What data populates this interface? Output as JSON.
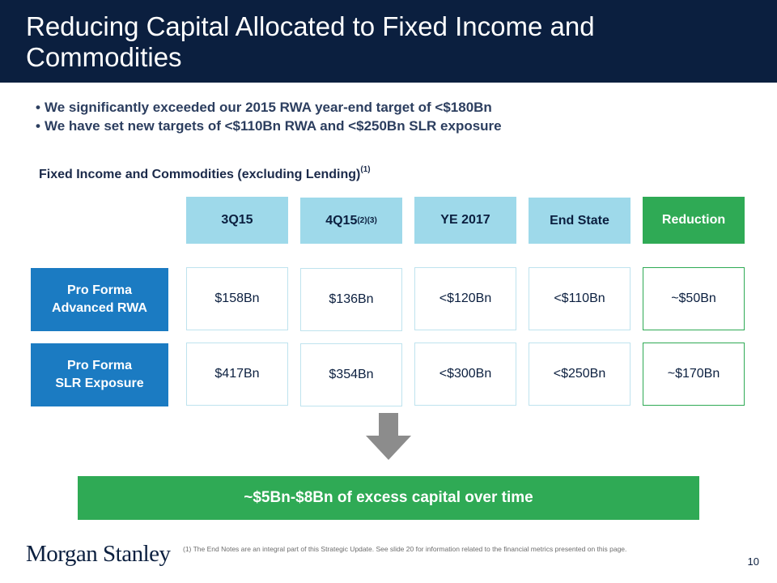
{
  "slide": {
    "title": "Reducing Capital Allocated to Fixed Income and Commodities",
    "bullets": [
      "We significantly exceeded our 2015 RWA year-end target of <$180Bn",
      "We have set new targets of <$110Bn RWA and <$250Bn SLR exposure"
    ],
    "section_title": "Fixed Income and Commodities (excluding Lending)",
    "section_title_sup": "(1)"
  },
  "table": {
    "headers": [
      {
        "label": "3Q15",
        "sup": ""
      },
      {
        "label": "4Q15",
        "sup": "(2)(3)"
      },
      {
        "label": "YE 2017",
        "sup": ""
      },
      {
        "label": "End State",
        "sup": ""
      },
      {
        "label": "Reduction",
        "sup": ""
      }
    ],
    "rows": [
      {
        "label_line1": "Pro Forma",
        "label_line2": "Advanced RWA",
        "values": [
          "$158Bn",
          "$136Bn",
          "<$120Bn",
          "<$110Bn",
          "~$50Bn"
        ]
      },
      {
        "label_line1": "Pro Forma",
        "label_line2": "SLR Exposure",
        "values": [
          "$417Bn",
          "$354Bn",
          "<$300Bn",
          "<$250Bn",
          "~$170Bn"
        ]
      }
    ]
  },
  "result": "~$5Bn-$8Bn of excess capital over time",
  "footer": {
    "logo": "Morgan Stanley",
    "footnote": "(1)   The End Notes are an integral part of this Strategic Update. See slide 20 for information related to the financial metrics presented on this page.",
    "page_number": "10"
  },
  "colors": {
    "navy": "#0b1f3f",
    "light_blue_header": "#9ed9ea",
    "row_label_blue": "#1b7bc2",
    "green": "#2faa55",
    "arrow_gray": "#8c8c8c"
  },
  "icons": {
    "arrow": "down-arrow-icon"
  }
}
